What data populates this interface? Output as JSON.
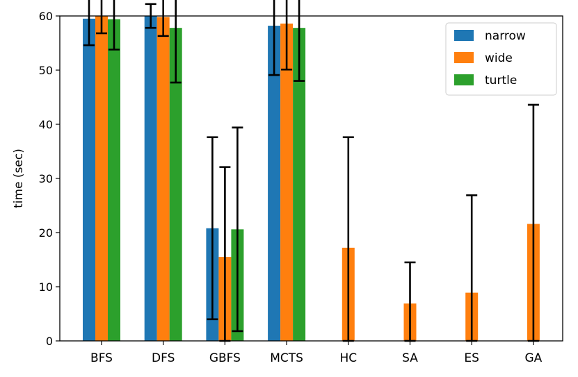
{
  "chart_data": {
    "type": "bar",
    "title": "",
    "xlabel": "",
    "ylabel": "time (sec)",
    "ylim": [
      0,
      60
    ],
    "yticks": [
      0,
      10,
      20,
      30,
      40,
      50,
      60
    ],
    "categories": [
      "BFS",
      "DFS",
      "GBFS",
      "MCTS",
      "HC",
      "SA",
      "ES",
      "GA"
    ],
    "series": [
      {
        "name": "narrow",
        "color": "#1f77b4",
        "values": [
          59.5,
          60.0,
          20.8,
          58.2,
          0,
          0,
          0,
          0
        ],
        "errors": [
          4.9,
          2.2,
          16.8,
          9.1,
          0,
          0,
          0,
          0
        ]
      },
      {
        "name": "wide",
        "color": "#ff7f0e",
        "values": [
          60.0,
          59.8,
          15.5,
          58.6,
          17.2,
          6.9,
          8.9,
          21.6
        ],
        "errors": [
          3.2,
          3.5,
          16.6,
          8.5,
          20.4,
          7.6,
          18.0,
          22.0
        ]
      },
      {
        "name": "turtle",
        "color": "#2ca02c",
        "values": [
          59.4,
          57.8,
          20.6,
          57.8,
          0,
          0,
          0,
          0
        ],
        "errors": [
          5.6,
          10.1,
          18.8,
          9.8,
          0,
          0,
          0,
          0
        ]
      }
    ],
    "legend_position": "top-right",
    "grid": false
  }
}
